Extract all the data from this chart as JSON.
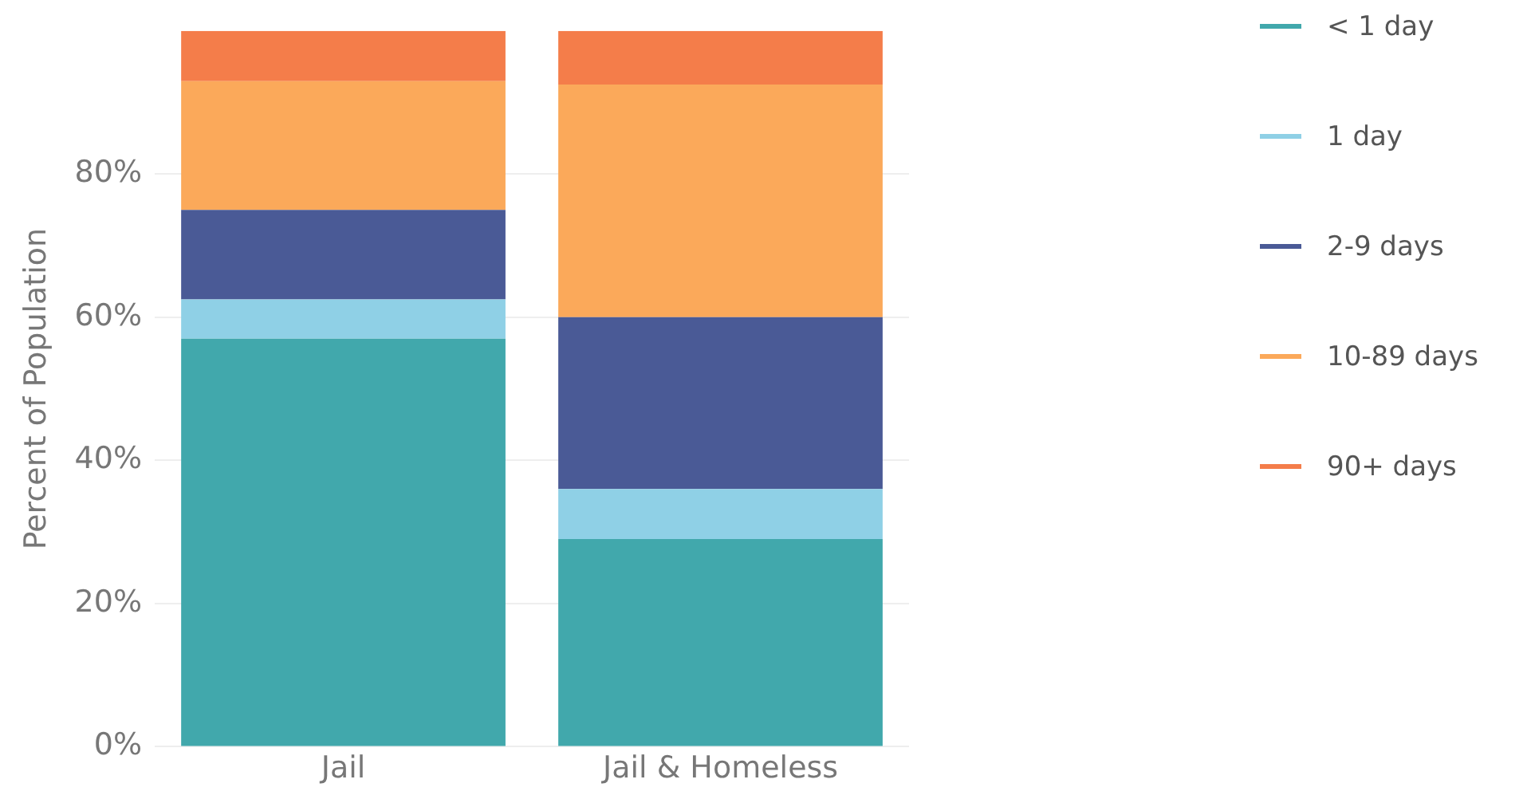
{
  "chart_data": {
    "type": "bar",
    "stacked": true,
    "ylabel": "Percent of Population",
    "categories": [
      "Jail",
      "Jail & Homeless"
    ],
    "series": [
      {
        "name": "< 1 day",
        "color": "#41a8ac",
        "values": [
          57,
          29
        ]
      },
      {
        "name": "1 day",
        "color": "#8fd0e6",
        "values": [
          5.5,
          7
        ]
      },
      {
        "name": "2-9 days",
        "color": "#4a5a96",
        "values": [
          12.5,
          24
        ]
      },
      {
        "name": "10-89 days",
        "color": "#fba95a",
        "values": [
          18,
          32.5
        ]
      },
      {
        "name": "90+ days",
        "color": "#f47d4a",
        "values": [
          7,
          7.5
        ]
      }
    ],
    "ylim": [
      0,
      100
    ],
    "yticks": [
      {
        "value": 0,
        "label": "0%"
      },
      {
        "value": 20,
        "label": "20%"
      },
      {
        "value": 40,
        "label": "40%"
      },
      {
        "value": 60,
        "label": "60%"
      },
      {
        "value": 80,
        "label": "80%"
      }
    ],
    "grid": "y",
    "legend": "top right"
  }
}
